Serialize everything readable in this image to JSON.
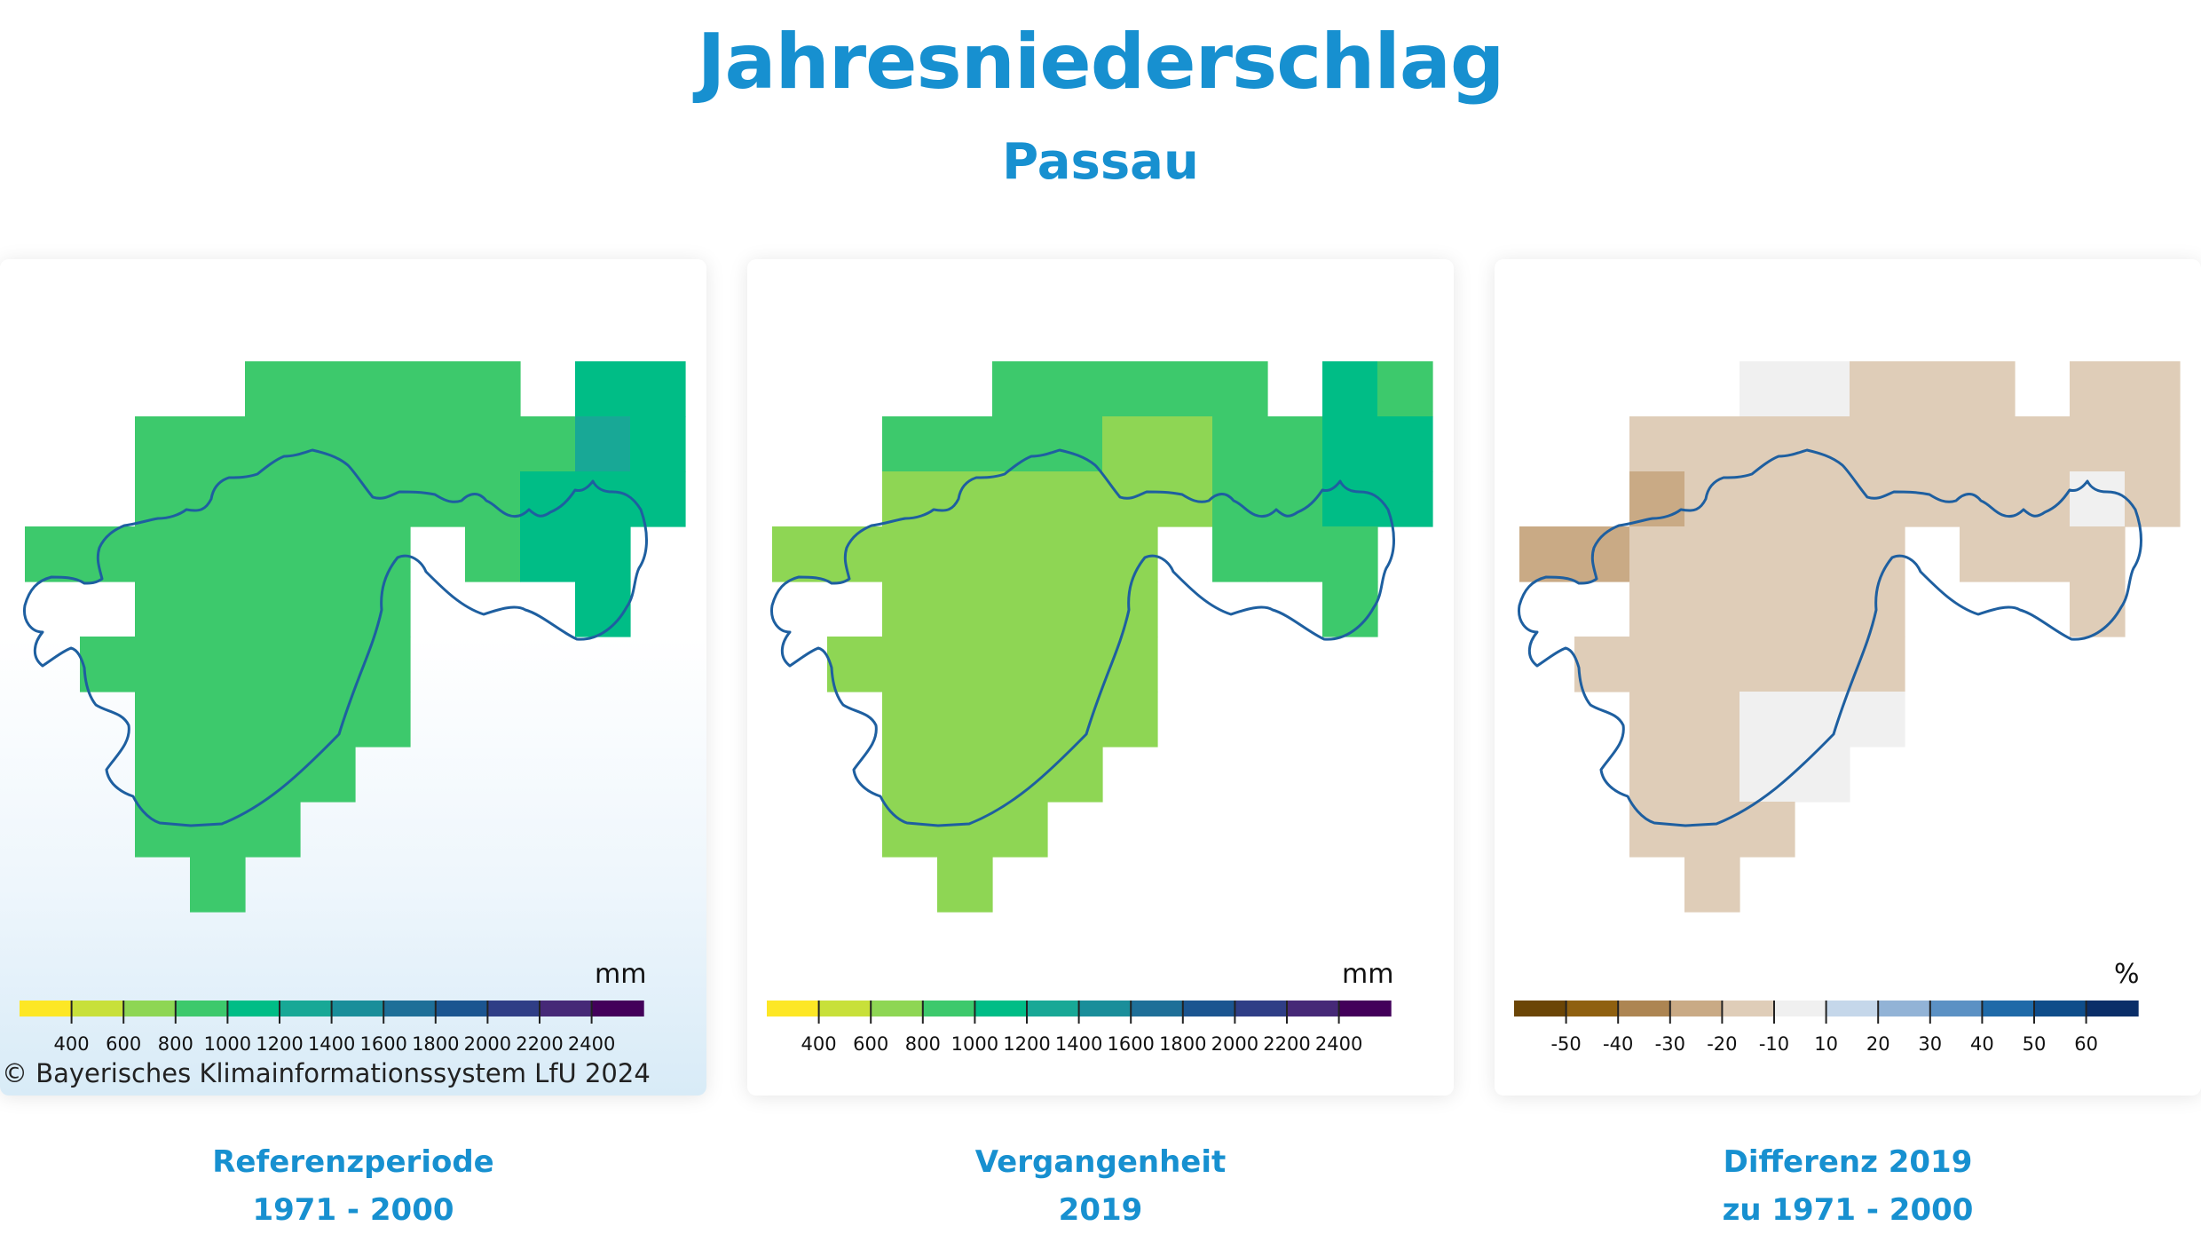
{
  "header": {
    "title": "Jahresniederschlag",
    "subtitle": "Passau"
  },
  "panels": [
    {
      "id": "ref",
      "caption_line1": "Referenzperiode",
      "caption_line2": "1971 - 2000",
      "unit": "mm",
      "legend_labels": [
        "400",
        "600",
        "800",
        "1000",
        "1200",
        "1400",
        "1600",
        "1800",
        "2000",
        "2200",
        "2400"
      ],
      "legend_colors": [
        "#fde725",
        "#c8e03a",
        "#8ed654",
        "#3dc96c",
        "#00bd86",
        "#18a896",
        "#1a8e9a",
        "#1e6f98",
        "#1b5590",
        "#2f3e86",
        "#462977",
        "#43005a"
      ]
    },
    {
      "id": "past",
      "caption_line1": "Vergangenheit",
      "caption_line2": "2019",
      "unit": "mm",
      "legend_labels": [
        "400",
        "600",
        "800",
        "1000",
        "1200",
        "1400",
        "1600",
        "1800",
        "2000",
        "2200",
        "2400"
      ],
      "legend_colors": [
        "#fde725",
        "#c8e03a",
        "#8ed654",
        "#3dc96c",
        "#00bd86",
        "#18a896",
        "#1a8e9a",
        "#1e6f98",
        "#1b5590",
        "#2f3e86",
        "#462977",
        "#43005a"
      ]
    },
    {
      "id": "diff",
      "caption_line1": "Differenz 2019",
      "caption_line2": "zu 1971 - 2000",
      "unit": "%",
      "legend_labels": [
        "-50",
        "-40",
        "-30",
        "-20",
        "-10",
        "10",
        "20",
        "30",
        "40",
        "50",
        "60"
      ],
      "legend_colors": [
        "#6b4506",
        "#8f6010",
        "#ad8552",
        "#c9aa85",
        "#dfcdb8",
        "#f0f0f0",
        "#c5d7ea",
        "#92b3d6",
        "#5b91c4",
        "#1f6aa8",
        "#0f4d8a",
        "#0a2e68"
      ]
    }
  ],
  "copyright": "© Bayerisches Klimainformationssystem LfU 2024",
  "map_values": {
    "ref": {
      "_legend_class": "mm",
      "cells": [
        [
          null,
          null,
          null,
          null,
          "g",
          "g",
          "n",
          "n",
          "n",
          null,
          "e",
          "e"
        ],
        [
          null,
          null,
          "g",
          "g",
          "g",
          "g",
          "g",
          "g",
          "n",
          "n",
          "f",
          "e"
        ],
        [
          null,
          null,
          "g",
          "g",
          "g",
          "g",
          "g",
          "g",
          "g",
          "e",
          "e",
          "e"
        ],
        [
          "g",
          "g",
          "g",
          "g",
          "g",
          "g",
          "g",
          null,
          "g",
          "e",
          "e",
          null
        ],
        [
          null,
          null,
          "g",
          "g",
          "g",
          "g",
          "g",
          null,
          null,
          null,
          "e",
          null
        ],
        [
          null,
          "g",
          "g",
          "g",
          "g",
          "g",
          "g",
          null,
          null,
          null,
          null,
          null
        ],
        [
          null,
          null,
          "g",
          "g",
          "g",
          "g",
          "g",
          null,
          null,
          null,
          null,
          null
        ],
        [
          null,
          null,
          "g",
          "g",
          "g",
          "g",
          null,
          null,
          null,
          null,
          null,
          null
        ],
        [
          null,
          null,
          "g",
          "g",
          "g",
          null,
          null,
          null,
          null,
          null,
          null,
          null
        ],
        [
          null,
          null,
          null,
          "g",
          null,
          null,
          null,
          null,
          null,
          null,
          null,
          null
        ]
      ]
    },
    "past": {
      "cells": [
        [
          null,
          null,
          null,
          null,
          "n",
          "n",
          "n",
          "n",
          "n",
          null,
          "e",
          "n"
        ],
        [
          null,
          null,
          "n",
          "n",
          "n",
          "n",
          "l",
          "l",
          "n",
          "n",
          "e",
          "e"
        ],
        [
          null,
          null,
          "l",
          "l",
          "l",
          "l",
          "l",
          "l",
          "n",
          "n",
          "e",
          "e"
        ],
        [
          "l",
          "l",
          "l",
          "l",
          "l",
          "l",
          "l",
          null,
          "n",
          "n",
          "n",
          null
        ],
        [
          null,
          null,
          "l",
          "l",
          "l",
          "l",
          "l",
          null,
          null,
          null,
          "n",
          null
        ],
        [
          null,
          "l",
          "l",
          "l",
          "l",
          "l",
          "l",
          null,
          null,
          null,
          null,
          null
        ],
        [
          null,
          null,
          "l",
          "l",
          "l",
          "l",
          "l",
          null,
          null,
          null,
          null,
          null
        ],
        [
          null,
          null,
          "l",
          "l",
          "l",
          "l",
          null,
          null,
          null,
          null,
          null,
          null
        ],
        [
          null,
          null,
          "l",
          "l",
          "l",
          null,
          null,
          null,
          null,
          null,
          null,
          null
        ],
        [
          null,
          null,
          null,
          "l",
          null,
          null,
          null,
          null,
          null,
          null,
          null,
          null
        ]
      ]
    },
    "diff": {
      "cells": [
        [
          null,
          null,
          null,
          null,
          "w",
          "w",
          "t",
          "t",
          "t",
          null,
          "t",
          "t"
        ],
        [
          null,
          null,
          "t",
          "t",
          "t",
          "t",
          "t",
          "t",
          "t",
          "t",
          "t",
          "t"
        ],
        [
          null,
          null,
          "m",
          "t",
          "t",
          "t",
          "t",
          "t",
          "t",
          "t",
          "w",
          "t"
        ],
        [
          "m",
          "m",
          "t",
          "t",
          "t",
          "t",
          "t",
          null,
          "t",
          "t",
          "t",
          null
        ],
        [
          null,
          null,
          "t",
          "t",
          "t",
          "t",
          "t",
          null,
          null,
          null,
          "t",
          null
        ],
        [
          null,
          "t",
          "t",
          "t",
          "t",
          "t",
          "t",
          null,
          null,
          null,
          null,
          null
        ],
        [
          null,
          null,
          "t",
          "t",
          "w",
          "w",
          "w",
          null,
          null,
          null,
          null,
          null
        ],
        [
          null,
          null,
          "t",
          "t",
          "w",
          "w",
          null,
          null,
          null,
          null,
          null,
          null
        ],
        [
          null,
          null,
          "t",
          "t",
          "t",
          null,
          null,
          null,
          null,
          null,
          null,
          null
        ],
        [
          null,
          null,
          null,
          "t",
          null,
          null,
          null,
          null,
          null,
          null,
          null,
          null
        ]
      ]
    }
  },
  "cell_colors": {
    "g": "#3dc96c",
    "n": "#3dc96c",
    "e": "#00bd86",
    "f": "#18a896",
    "l": "#8ed654",
    "t": "#dfcdb8",
    "m": "#c9aa85",
    "w": "#f0f0f0"
  },
  "outline_color": "#1e5fa0"
}
